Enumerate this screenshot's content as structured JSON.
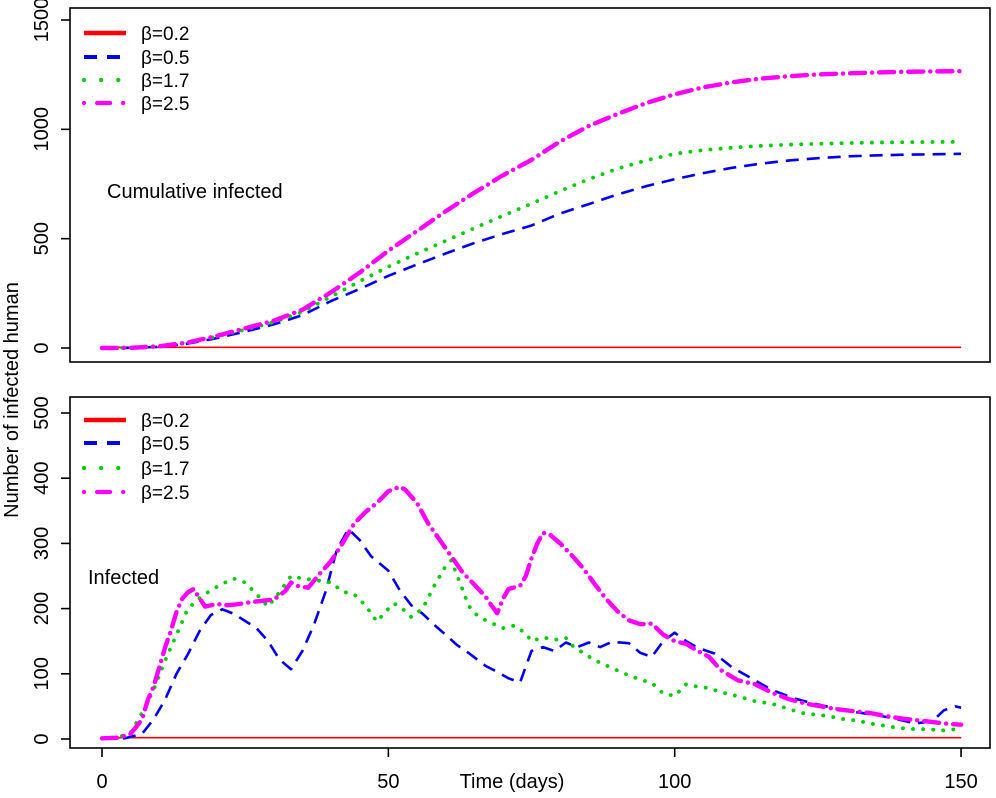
{
  "figure": {
    "background": "#FFFFFF"
  },
  "axes": {
    "xlabel": "Time (days)",
    "ylabel": "Number of infected human"
  },
  "colors": {
    "red": "#FF0000",
    "blue": "#0000EE",
    "green": "#00CC00",
    "magenta": "#FF00FF"
  },
  "chart_data": [
    {
      "type": "line",
      "annotation": "Cumulative infected",
      "xlabel": "Time (days)",
      "ylabel": "Number of infected human",
      "xlim": [
        0,
        150
      ],
      "ylim": [
        0,
        1500
      ],
      "xticks": [
        0,
        50,
        100,
        150
      ],
      "yticks": [
        0,
        500,
        1000,
        1500
      ],
      "show_xticklabels": false,
      "grid": false,
      "legend_position": "top-left",
      "series": [
        {
          "name": "β=0.2",
          "color": "#FF0000",
          "style": "solid",
          "x": [
            0,
            150
          ],
          "y": [
            3,
            3
          ]
        },
        {
          "name": "β=0.5",
          "color": "#0000EE",
          "style": "dashed",
          "x": [
            0,
            5,
            10,
            15,
            20,
            25,
            30,
            35,
            40,
            45,
            50,
            55,
            60,
            65,
            70,
            75,
            80,
            85,
            90,
            95,
            100,
            105,
            110,
            115,
            120,
            125,
            130,
            135,
            140,
            145,
            150
          ],
          "y": [
            0,
            1,
            5,
            20,
            45,
            75,
            108,
            150,
            215,
            270,
            330,
            382,
            432,
            480,
            522,
            560,
            615,
            658,
            702,
            740,
            772,
            800,
            824,
            843,
            858,
            868,
            876,
            881,
            884,
            886,
            888
          ]
        },
        {
          "name": "β=1.7",
          "color": "#00CC00",
          "style": "dotted",
          "x": [
            0,
            5,
            10,
            15,
            20,
            25,
            30,
            35,
            40,
            45,
            50,
            55,
            60,
            65,
            70,
            75,
            80,
            85,
            90,
            95,
            100,
            105,
            110,
            115,
            120,
            125,
            130,
            135,
            140,
            145,
            150
          ],
          "y": [
            0,
            1,
            8,
            25,
            52,
            84,
            118,
            165,
            235,
            305,
            372,
            432,
            490,
            548,
            605,
            660,
            718,
            772,
            820,
            858,
            888,
            905,
            916,
            924,
            930,
            934,
            937,
            940,
            941,
            942,
            943
          ]
        },
        {
          "name": "β=2.5",
          "color": "#FF00FF",
          "style": "dashdot",
          "x": [
            0,
            5,
            10,
            15,
            20,
            25,
            30,
            35,
            40,
            45,
            50,
            55,
            60,
            65,
            70,
            75,
            80,
            85,
            90,
            95,
            100,
            105,
            110,
            115,
            120,
            125,
            130,
            135,
            140,
            145,
            150
          ],
          "y": [
            0,
            1,
            8,
            25,
            55,
            90,
            125,
            175,
            255,
            345,
            445,
            535,
            625,
            710,
            790,
            860,
            945,
            1015,
            1070,
            1120,
            1160,
            1192,
            1215,
            1232,
            1243,
            1251,
            1256,
            1260,
            1263,
            1265,
            1266
          ]
        }
      ]
    },
    {
      "type": "line",
      "annotation": "Infected",
      "xlabel": "Time (days)",
      "ylabel": "Number of infected human",
      "xlim": [
        0,
        150
      ],
      "ylim": [
        0,
        500
      ],
      "xticks": [
        0,
        50,
        100,
        150
      ],
      "yticks": [
        0,
        100,
        200,
        300,
        400,
        500
      ],
      "show_xticklabels": true,
      "grid": false,
      "legend_position": "top-left",
      "series": [
        {
          "name": "β=0.2",
          "color": "#FF0000",
          "style": "solid",
          "x": [
            0,
            150
          ],
          "y": [
            2,
            2
          ]
        },
        {
          "name": "β=0.5",
          "color": "#0000EE",
          "style": "dashed",
          "x": [
            0,
            4,
            7,
            9,
            11,
            13,
            15,
            17,
            19,
            21,
            23,
            25,
            27,
            29,
            31,
            33,
            35,
            37,
            39,
            41,
            43,
            45,
            47,
            50,
            52,
            54,
            56,
            58,
            60,
            62,
            64,
            67,
            69,
            71,
            73,
            75,
            77,
            79,
            81,
            83,
            85,
            87,
            89,
            92,
            94,
            96,
            98,
            100,
            102,
            104,
            107,
            110,
            114,
            117,
            121,
            124,
            128,
            131,
            135,
            138,
            142,
            145,
            147,
            149,
            150
          ],
          "y": [
            1,
            1,
            8,
            30,
            60,
            100,
            130,
            165,
            190,
            199,
            192,
            181,
            170,
            150,
            122,
            107,
            135,
            175,
            225,
            290,
            322,
            305,
            280,
            258,
            228,
            205,
            192,
            175,
            160,
            144,
            132,
            112,
            103,
            93,
            87,
            135,
            141,
            135,
            148,
            141,
            148,
            141,
            149,
            147,
            132,
            126,
            150,
            163,
            150,
            140,
            131,
            110,
            90,
            75,
            62,
            55,
            47,
            42,
            37,
            32,
            24,
            27,
            44,
            50,
            48
          ]
        },
        {
          "name": "β=1.7",
          "color": "#00CC00",
          "style": "dotted",
          "x": [
            0,
            3,
            5,
            7,
            9,
            11,
            13,
            15,
            17,
            19,
            21,
            23,
            25,
            27,
            29,
            31,
            33,
            35,
            37,
            40,
            42,
            44,
            46,
            48,
            50,
            51,
            53,
            54,
            56,
            58,
            60,
            61,
            63,
            64,
            65,
            67,
            68,
            70,
            72,
            74,
            75,
            77,
            79,
            81,
            82,
            84,
            86,
            89,
            91,
            94,
            96,
            98,
            100,
            102,
            104,
            106,
            108,
            110,
            112,
            114,
            117,
            120,
            122,
            124,
            127,
            129,
            132,
            134,
            137,
            139,
            142,
            144,
            147,
            150
          ],
          "y": [
            1,
            3,
            10,
            40,
            75,
            120,
            160,
            200,
            216,
            228,
            238,
            246,
            240,
            222,
            203,
            225,
            250,
            246,
            244,
            240,
            226,
            222,
            205,
            180,
            200,
            208,
            196,
            187,
            200,
            235,
            265,
            274,
            228,
            205,
            193,
            182,
            178,
            170,
            174,
            162,
            150,
            156,
            152,
            155,
            144,
            132,
            121,
            109,
            101,
            91,
            86,
            70,
            66,
            84,
            80,
            78,
            72,
            68,
            63,
            58,
            54,
            46,
            40,
            38,
            35,
            31,
            28,
            24,
            20,
            17,
            15,
            15,
            13,
            16
          ]
        },
        {
          "name": "β=2.5",
          "color": "#FF00FF",
          "style": "dashdot",
          "x": [
            0,
            3,
            5,
            7,
            8,
            9,
            10,
            11,
            12,
            13,
            14,
            15,
            16,
            18,
            20,
            22,
            24,
            26,
            28,
            30,
            32,
            33,
            34,
            36,
            38,
            40,
            42,
            44,
            46,
            48,
            50,
            52,
            53,
            55,
            57,
            59,
            61,
            63,
            65,
            67,
            68,
            69,
            70,
            71,
            73,
            74,
            75,
            76,
            77,
            78,
            80,
            82,
            84,
            86,
            88,
            90,
            92,
            94,
            96,
            98,
            100,
            102,
            104,
            106,
            108,
            111,
            114,
            117,
            120,
            123,
            125,
            128,
            131,
            134,
            137,
            140,
            143,
            146,
            148,
            150
          ],
          "y": [
            1,
            2,
            8,
            30,
            60,
            80,
            110,
            140,
            165,
            195,
            215,
            225,
            230,
            203,
            207,
            205,
            207,
            210,
            212,
            214,
            227,
            240,
            235,
            232,
            253,
            273,
            300,
            330,
            348,
            362,
            380,
            387,
            382,
            362,
            330,
            305,
            280,
            255,
            237,
            218,
            205,
            193,
            215,
            230,
            235,
            250,
            277,
            300,
            316,
            315,
            300,
            282,
            262,
            238,
            215,
            196,
            182,
            176,
            177,
            160,
            150,
            146,
            135,
            126,
            106,
            90,
            84,
            71,
            61,
            54,
            51,
            46,
            43,
            40,
            35,
            31,
            28,
            25,
            23,
            22
          ]
        }
      ]
    }
  ]
}
